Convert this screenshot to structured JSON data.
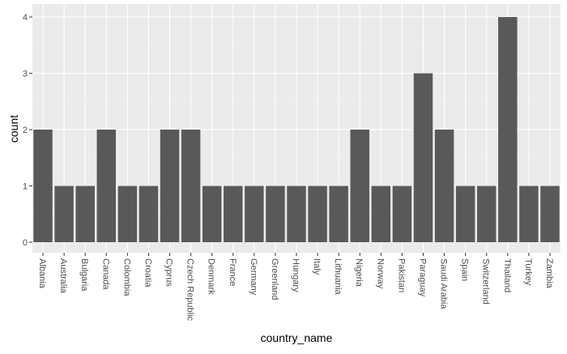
{
  "chart_data": {
    "type": "bar",
    "categories": [
      "Albania",
      "Australia",
      "Bulgaria",
      "Canada",
      "Colombia",
      "Croatia",
      "Cyprus",
      "Czech Republic",
      "Denmark",
      "France",
      "Germany",
      "Greenland",
      "Hungary",
      "Italy",
      "Lithuania",
      "Nigeria",
      "Norway",
      "Pakistan",
      "Paraguay",
      "Saudi Arabia",
      "Spain",
      "Switzerland",
      "Thailand",
      "Turkey",
      "Zambia"
    ],
    "values": [
      2,
      1,
      1,
      2,
      1,
      1,
      2,
      2,
      1,
      1,
      1,
      1,
      1,
      1,
      1,
      2,
      1,
      1,
      3,
      2,
      1,
      1,
      4,
      1,
      1
    ],
    "title": "",
    "xlabel": "country_name",
    "ylabel": "count",
    "ylim": [
      0,
      4.2
    ],
    "yticks": [
      "0",
      "1",
      "2",
      "3",
      "4"
    ],
    "grid": true,
    "legend": "none",
    "colors": {
      "bar": "#595959",
      "panel": "#ebebeb",
      "grid_major": "#ffffff",
      "grid_minor": "#f5f5f5"
    }
  }
}
